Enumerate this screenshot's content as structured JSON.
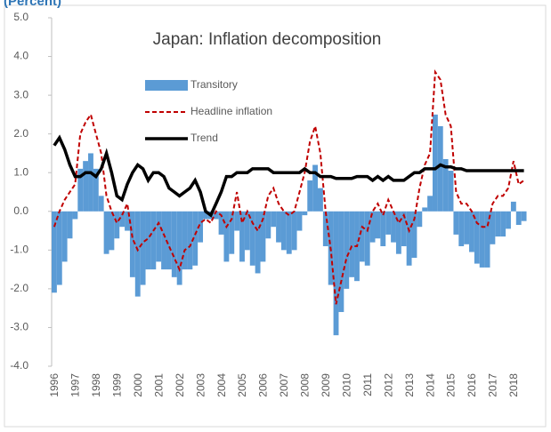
{
  "chart_data": {
    "type": "bar-line",
    "title": "Japan: Inflation decomposition",
    "subtitle": "(Percent)",
    "x": [
      1996,
      1996.25,
      1996.5,
      1996.75,
      1997,
      1997.25,
      1997.5,
      1997.75,
      1998,
      1998.25,
      1998.5,
      1998.75,
      1999,
      1999.25,
      1999.5,
      1999.75,
      2000,
      2000.25,
      2000.5,
      2000.75,
      2001,
      2001.25,
      2001.5,
      2001.75,
      2002,
      2002.25,
      2002.5,
      2002.75,
      2003,
      2003.25,
      2003.5,
      2003.75,
      2004,
      2004.25,
      2004.5,
      2004.75,
      2005,
      2005.25,
      2005.5,
      2005.75,
      2006,
      2006.25,
      2006.5,
      2006.75,
      2007,
      2007.25,
      2007.5,
      2007.75,
      2008,
      2008.25,
      2008.5,
      2008.75,
      2009,
      2009.25,
      2009.5,
      2009.75,
      2010,
      2010.25,
      2010.5,
      2010.75,
      2011,
      2011.25,
      2011.5,
      2011.75,
      2012,
      2012.25,
      2012.5,
      2012.75,
      2013,
      2013.25,
      2013.5,
      2013.75,
      2014,
      2014.25,
      2014.5,
      2014.75,
      2015,
      2015.25,
      2015.5,
      2015.75,
      2016,
      2016.25,
      2016.5,
      2016.75,
      2017,
      2017.25,
      2017.5,
      2017.75,
      2018,
      2018.25,
      2018.5
    ],
    "series": [
      {
        "name": "Transitory",
        "color": "#5b9bd5",
        "kind": "bar",
        "values": [
          -2.1,
          -1.9,
          -1.3,
          -0.7,
          -0.2,
          1.1,
          1.3,
          1.5,
          1.1,
          0.4,
          -1.1,
          -1.0,
          -0.7,
          -0.4,
          -0.5,
          -1.7,
          -2.2,
          -1.9,
          -1.5,
          -1.5,
          -1.3,
          -1.5,
          -1.5,
          -1.7,
          -1.9,
          -1.5,
          -1.5,
          -1.4,
          -0.8,
          -0.2,
          -0.2,
          -0.2,
          -0.6,
          -1.3,
          -1.1,
          -0.5,
          -1.3,
          -1.0,
          -1.4,
          -1.6,
          -1.3,
          -0.7,
          -0.4,
          -0.8,
          -1.0,
          -1.1,
          -1.0,
          -0.5,
          -0.1,
          0.8,
          1.2,
          0.6,
          -0.9,
          -1.9,
          -3.2,
          -2.6,
          -2.0,
          -1.7,
          -1.8,
          -1.3,
          -1.4,
          -0.8,
          -0.7,
          -0.9,
          -0.6,
          -0.8,
          -1.1,
          -0.9,
          -1.4,
          -1.2,
          -0.4,
          0.1,
          0.4,
          2.5,
          2.2,
          1.35,
          1.05,
          -0.6,
          -0.9,
          -0.85,
          -1.05,
          -1.35,
          -1.45,
          -1.45,
          -0.85,
          -0.65,
          -0.65,
          -0.45,
          0.25,
          -0.35,
          -0.25
        ]
      },
      {
        "name": "Headline inflation",
        "color": "#c00000",
        "kind": "dashed",
        "values": [
          -0.4,
          0.0,
          0.3,
          0.5,
          0.7,
          2.0,
          2.3,
          2.5,
          2.0,
          1.5,
          0.4,
          0.0,
          -0.3,
          -0.1,
          0.2,
          -0.7,
          -1.0,
          -0.8,
          -0.7,
          -0.5,
          -0.3,
          -0.6,
          -0.9,
          -1.2,
          -1.5,
          -1.0,
          -0.9,
          -0.6,
          -0.3,
          -0.2,
          -0.3,
          0.0,
          -0.1,
          -0.4,
          -0.2,
          0.5,
          -0.3,
          0.0,
          -0.3,
          -0.5,
          -0.2,
          0.4,
          0.6,
          0.2,
          0.0,
          -0.1,
          0.0,
          0.5,
          1.0,
          1.8,
          2.2,
          1.5,
          0.0,
          -1.0,
          -2.4,
          -1.8,
          -1.2,
          -0.9,
          -0.9,
          -0.4,
          -0.5,
          0.0,
          0.2,
          -0.1,
          0.3,
          0.0,
          -0.3,
          -0.1,
          -0.5,
          -0.2,
          0.6,
          1.2,
          1.5,
          3.6,
          3.4,
          2.5,
          2.2,
          0.5,
          0.2,
          0.2,
          0.0,
          -0.3,
          -0.4,
          -0.4,
          0.2,
          0.4,
          0.4,
          0.6,
          1.3,
          0.7,
          0.8
        ]
      },
      {
        "name": "Trend",
        "color": "#000000",
        "kind": "solid",
        "values": [
          1.7,
          1.9,
          1.6,
          1.2,
          0.9,
          0.9,
          1.0,
          1.0,
          0.9,
          1.1,
          1.5,
          1.0,
          0.4,
          0.3,
          0.7,
          1.0,
          1.2,
          1.1,
          0.8,
          1.0,
          1.0,
          0.9,
          0.6,
          0.5,
          0.4,
          0.5,
          0.6,
          0.8,
          0.5,
          0.0,
          -0.1,
          0.2,
          0.5,
          0.9,
          0.9,
          1.0,
          1.0,
          1.0,
          1.1,
          1.1,
          1.1,
          1.1,
          1.0,
          1.0,
          1.0,
          1.0,
          1.0,
          1.0,
          1.1,
          1.0,
          1.0,
          0.9,
          0.9,
          0.9,
          0.85,
          0.85,
          0.85,
          0.85,
          0.9,
          0.9,
          0.9,
          0.8,
          0.9,
          0.8,
          0.9,
          0.8,
          0.8,
          0.8,
          0.9,
          1.0,
          1.0,
          1.1,
          1.1,
          1.1,
          1.2,
          1.15,
          1.15,
          1.1,
          1.1,
          1.05,
          1.05,
          1.05,
          1.05,
          1.05,
          1.05,
          1.05,
          1.05,
          1.05,
          1.05,
          1.05,
          1.05
        ]
      }
    ],
    "xlim": [
      1996,
      2018.6
    ],
    "xticks": [
      1996,
      1997,
      1998,
      1999,
      2000,
      2001,
      2002,
      2003,
      2004,
      2005,
      2006,
      2007,
      2008,
      2009,
      2010,
      2011,
      2012,
      2013,
      2014,
      2015,
      2016,
      2017,
      2018
    ],
    "ylim": [
      -4,
      5
    ],
    "yticks": [
      {
        "value": -4,
        "label": "-4.0"
      },
      {
        "value": -3,
        "label": "-3.0"
      },
      {
        "value": -2,
        "label": "-2.0"
      },
      {
        "value": -1,
        "label": "-1.0"
      },
      {
        "value": 0,
        "label": "0.0"
      },
      {
        "value": 1,
        "label": "1.0"
      },
      {
        "value": 2,
        "label": "2.0"
      },
      {
        "value": 3,
        "label": "3.0"
      },
      {
        "value": 4,
        "label": "4.0"
      },
      {
        "value": 5,
        "label": "5.0"
      }
    ],
    "grid": false
  }
}
